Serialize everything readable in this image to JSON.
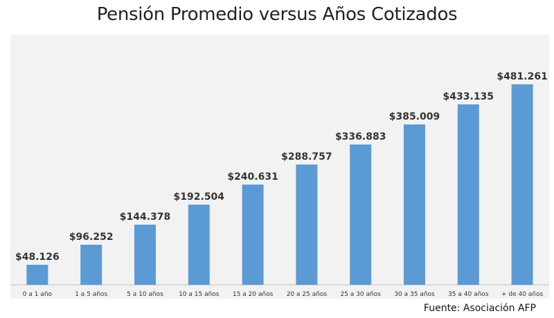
{
  "title": "Pensión Promedio versus Años Cotizados",
  "source": "Fuente: Asociación AFP",
  "colors": {
    "bar": "#5b9bd5",
    "plot_background": "#f2f2f2",
    "axis": "#bfbfbf"
  },
  "chart_data": {
    "type": "bar",
    "title": "Pensión Promedio versus Años Cotizados",
    "xlabel": "",
    "ylabel": "",
    "categories": [
      "0 a 1 año",
      "1 a 5 años",
      "5 a 10 años",
      "10 a 15 años",
      "15 a 20 años",
      "20 a 25 años",
      "25 a 30 años",
      "30 a 35 años",
      "35 a 40 años",
      "+ de 40 años"
    ],
    "values": [
      48126,
      96252,
      144378,
      192504,
      240631,
      288757,
      336883,
      385009,
      433135,
      481261
    ],
    "data_labels": [
      "$48.126",
      "$96.252",
      "$144.378",
      "$192.504",
      "$240.631",
      "$288.757",
      "$336.883",
      "$385.009",
      "$433.135",
      "$481.261"
    ],
    "ylim": [
      0,
      481261
    ],
    "grid": false,
    "legend": "none"
  }
}
